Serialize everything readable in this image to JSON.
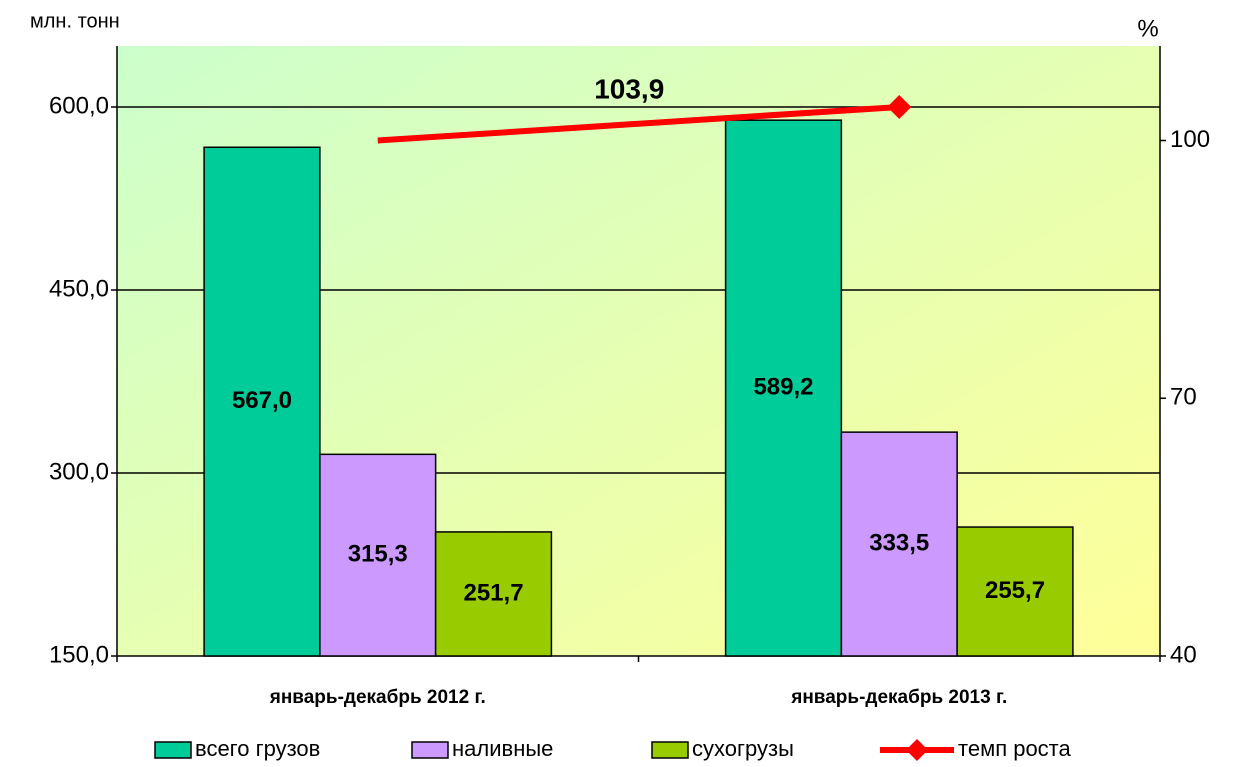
{
  "chart_data": {
    "type": "bar",
    "y_label": "млн. тонн",
    "y2_label": "%",
    "categories": [
      "январь-декабрь 2012 г.",
      "январь-декабрь 2013 г."
    ],
    "series": [
      {
        "name": "всего грузов",
        "color": "#00cc99",
        "values": [
          567.0,
          589.2
        ],
        "value_labels": [
          "567,0",
          "589,2"
        ]
      },
      {
        "name": "наливные",
        "color": "#cc99ff",
        "values": [
          315.3,
          333.5
        ],
        "value_labels": [
          "315,3",
          "333,5"
        ]
      },
      {
        "name": "сухогрузы",
        "color": "#99cc00",
        "values": [
          251.7,
          255.7
        ],
        "value_labels": [
          "251,7",
          "255,7"
        ]
      },
      {
        "name": "темп роста",
        "type": "line",
        "axis": "y2",
        "color": "#ff0000",
        "values": [
          100,
          103.9
        ],
        "value_labels": [
          null,
          "103,9"
        ]
      }
    ],
    "ylim": [
      150,
      650
    ],
    "yticks": [
      {
        "value": 150,
        "label": "150,0"
      },
      {
        "value": 300,
        "label": "300,0"
      },
      {
        "value": 450,
        "label": "450,0"
      },
      {
        "value": 600,
        "label": "600,0"
      }
    ],
    "y2lim": [
      40,
      111
    ],
    "y2ticks": [
      40,
      70,
      100
    ],
    "grid": true,
    "legend": "bottom"
  }
}
